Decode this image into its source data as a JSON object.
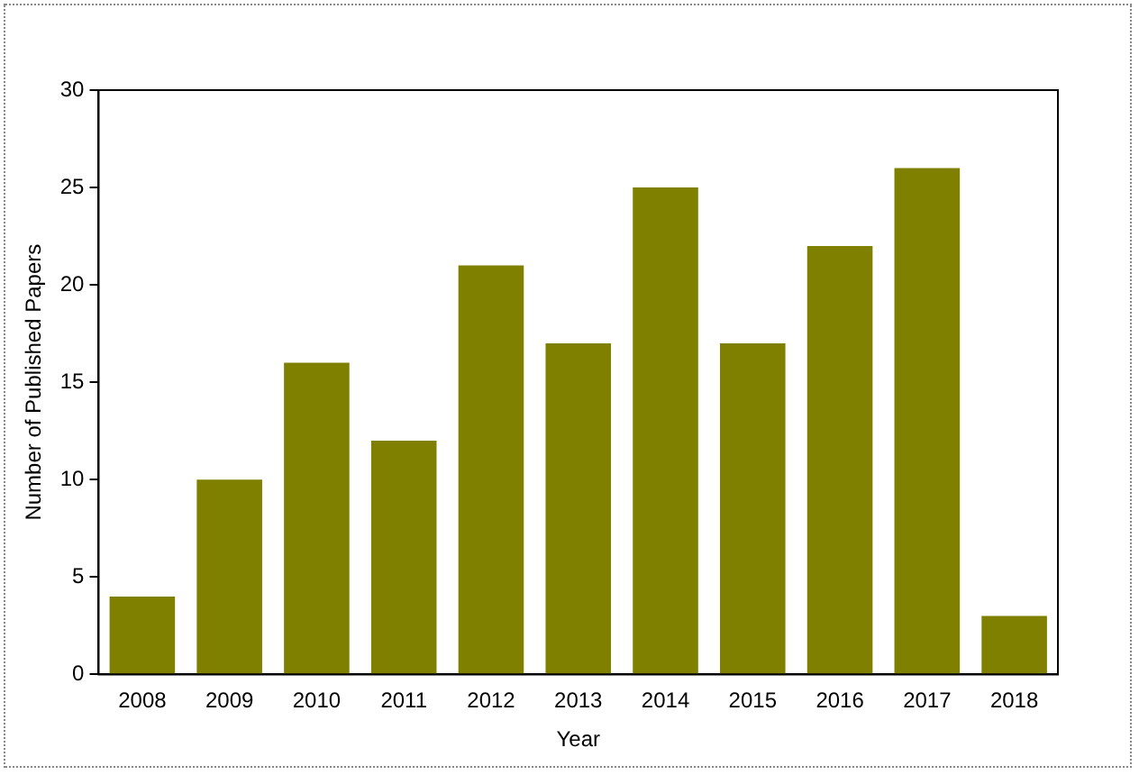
{
  "chart_data": {
    "type": "bar",
    "xlabel": "Year",
    "ylabel": "Number of Published Papers",
    "categories": [
      "2008",
      "2009",
      "2010",
      "2011",
      "2012",
      "2013",
      "2014",
      "2015",
      "2016",
      "2017",
      "2018"
    ],
    "values": [
      4,
      10,
      16,
      12,
      21,
      17,
      25,
      17,
      22,
      26,
      3
    ],
    "color": "#808000",
    "ylim": [
      0,
      30
    ],
    "yticks": [
      0,
      5,
      10,
      15,
      20,
      25,
      30
    ],
    "grid": false,
    "legend": false
  }
}
